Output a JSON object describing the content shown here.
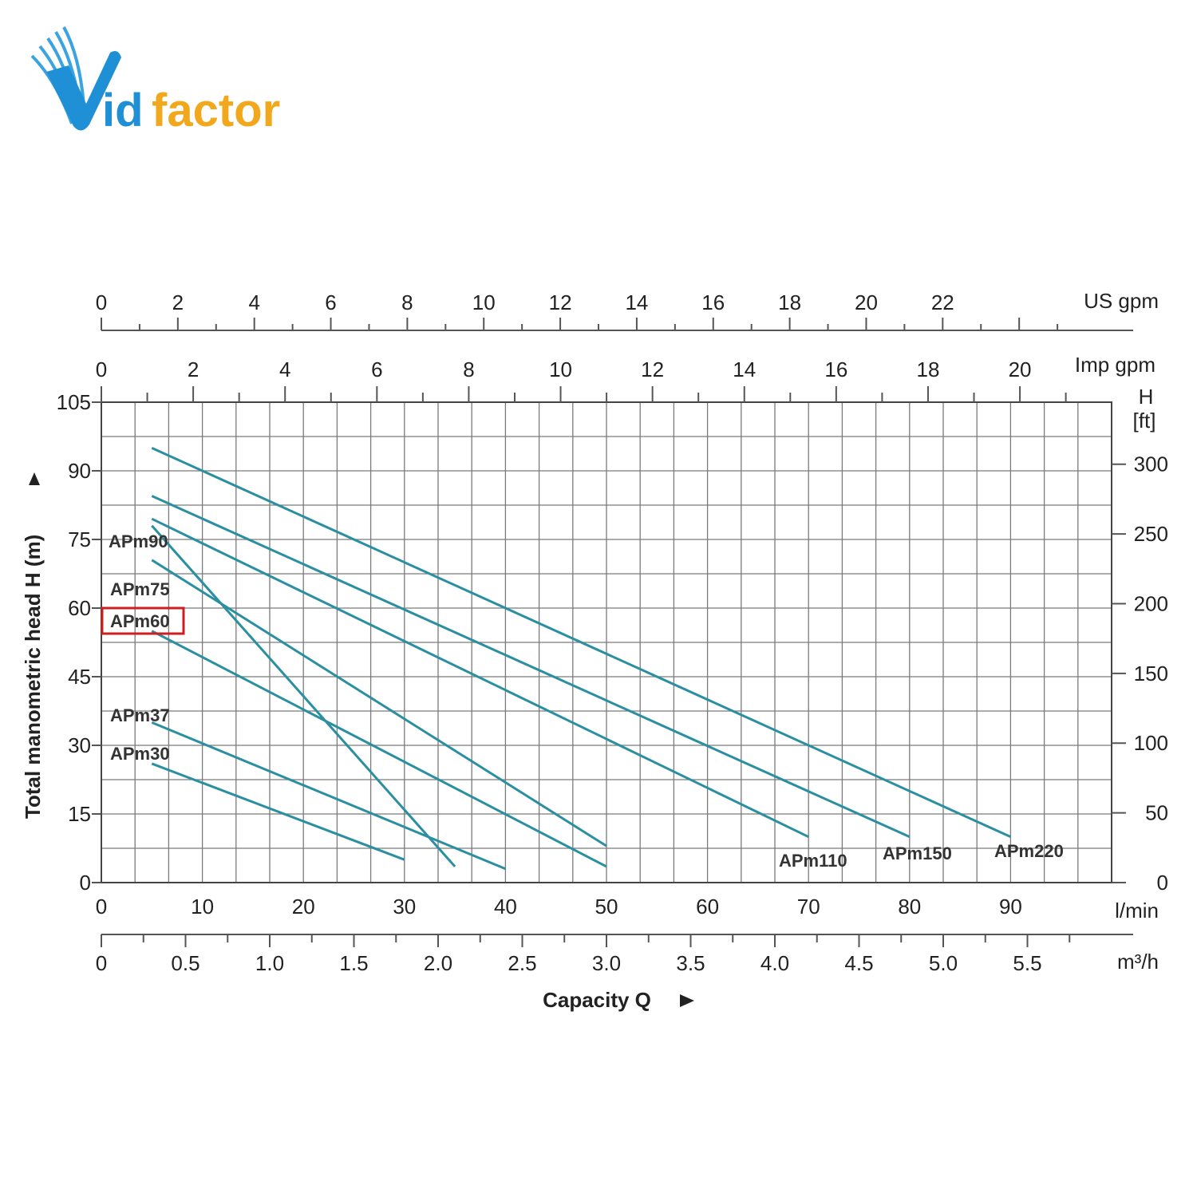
{
  "logo": {
    "text_prefix": "id",
    "text_suffix": "factor",
    "colors": {
      "blue": "#1f8fd6",
      "orange": "#f2a81d"
    }
  },
  "colors": {
    "series": "#2a8fa0",
    "grid": "#7a7a7a",
    "highlight": "#cc1f1f"
  },
  "chart_data": {
    "type": "line",
    "ylabel": "Total manometric head H (m)",
    "xlabel": "Capacity Q",
    "x_unit": "l/min",
    "y_unit_right": "H [ft]",
    "xlim": [
      0,
      100
    ],
    "ylim": [
      0,
      105
    ],
    "x_ticks": [
      0,
      10,
      20,
      30,
      40,
      50,
      60,
      70,
      80,
      90
    ],
    "y_ticks": [
      0,
      15,
      30,
      45,
      60,
      75,
      90,
      105
    ],
    "grid": true,
    "secondary_axes": {
      "us_gpm": {
        "label": "US gpm",
        "ticks": [
          0,
          2,
          4,
          6,
          8,
          10,
          12,
          14,
          16,
          18,
          20,
          22
        ]
      },
      "imp_gpm": {
        "label": "Imp gpm",
        "ticks": [
          0,
          2,
          4,
          6,
          8,
          10,
          12,
          14,
          16,
          18,
          20
        ]
      },
      "m3h": {
        "label": "m³/h",
        "ticks": [
          "0",
          "0.5",
          "1.0",
          "1.5",
          "2.0",
          "2.5",
          "3.0",
          "3.5",
          "4.0",
          "4.5",
          "5.0",
          "5.5"
        ]
      },
      "h_ft": {
        "label_line1": "H",
        "label_line2": "[ft]",
        "ticks": [
          0,
          50,
          100,
          150,
          200,
          250,
          300
        ]
      }
    },
    "series": [
      {
        "name": "APm30",
        "x": [
          5,
          30
        ],
        "y": [
          26,
          5
        ]
      },
      {
        "name": "APm37",
        "x": [
          5,
          40
        ],
        "y": [
          35,
          3
        ]
      },
      {
        "name": "APm60",
        "x": [
          5,
          50
        ],
        "y": [
          55,
          3.5
        ],
        "highlighted": true
      },
      {
        "name": "APm75",
        "x": [
          5,
          50
        ],
        "y": [
          70.5,
          8
        ]
      },
      {
        "name": "APm90",
        "x": [
          5,
          35
        ],
        "y": [
          78,
          3.5
        ]
      },
      {
        "name": "APm110",
        "x": [
          5,
          70
        ],
        "y": [
          79.5,
          10
        ]
      },
      {
        "name": "APm150",
        "x": [
          5,
          80
        ],
        "y": [
          84.5,
          10
        ]
      },
      {
        "name": "APm220",
        "x": [
          5,
          90
        ],
        "y": [
          95,
          10
        ]
      }
    ]
  }
}
